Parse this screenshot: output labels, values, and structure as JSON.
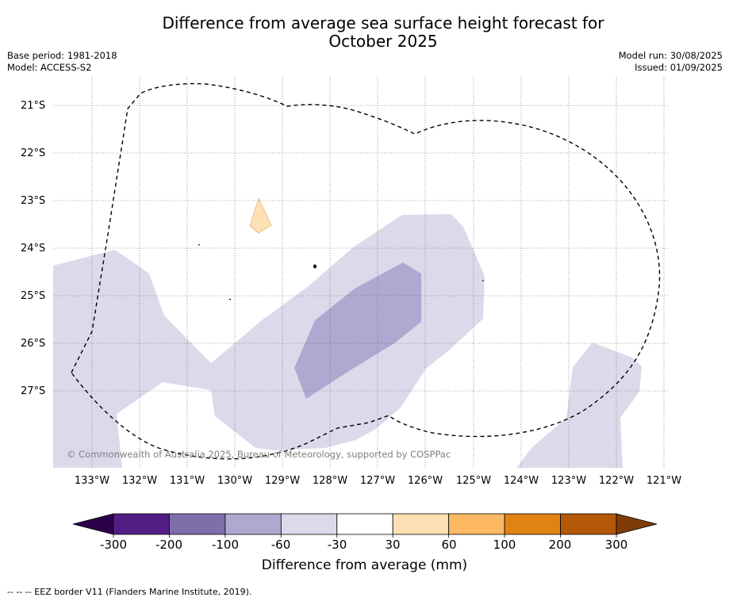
{
  "title_line1": "Difference from average sea surface height forecast for",
  "title_line2": "October 2025",
  "base_period": "Base period: 1981-2018",
  "model": "Model: ACCESS-S2",
  "model_run": "Model run: 30/08/2025",
  "issued": "Issued: 01/09/2025",
  "copyright": "© Commonwealth of Australia 2025, Bureau of Meteorology, supported by COSPPac",
  "lat_labels": [
    "21°S",
    "22°S",
    "23°S",
    "24°S",
    "25°S",
    "26°S",
    "27°S"
  ],
  "lon_labels": [
    "133°W",
    "132°W",
    "131°W",
    "130°W",
    "129°W",
    "128°W",
    "127°W",
    "126°W",
    "125°W",
    "124°W",
    "123°W",
    "122°W",
    "121°W"
  ],
  "colorbar": {
    "title": "Difference from average (mm)",
    "tick_labels": [
      "-300",
      "-200",
      "-100",
      "-60",
      "-30",
      "30",
      "60",
      "100",
      "200",
      "300"
    ],
    "colors": [
      "#531d86",
      "#7e6fab",
      "#afa9d1",
      "#dadaeb",
      "#ffffff",
      "#fee0b4",
      "#fdb863",
      "#e08214",
      "#b35806"
    ],
    "under_color": "#2d004b",
    "over_color": "#7f3b08"
  },
  "footnote": "--  --  -- EEZ border V11 (Flanders Marine Institute, 2019)."
}
